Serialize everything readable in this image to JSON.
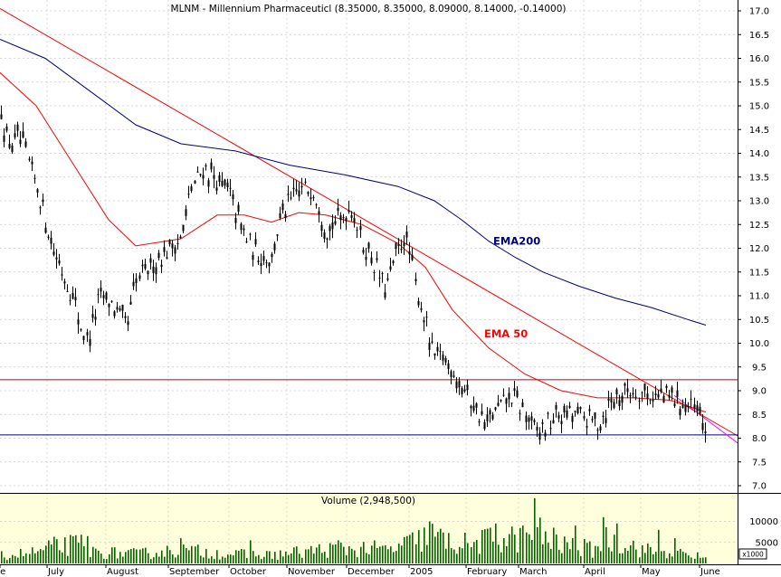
{
  "chart_data": [
    {
      "type": "candlestick",
      "title": "MLNM - Millennium Pharmaceuticl (8.35000, 8.35000, 8.09000, 8.14000, -0.14000)",
      "ylim": [
        6.9,
        17.3
      ],
      "y_ticks": [
        "17.0",
        "16.5",
        "16.0",
        "15.5",
        "15.0",
        "14.5",
        "14.0",
        "13.5",
        "13.0",
        "12.5",
        "12.0",
        "11.5",
        "11.0",
        "10.5",
        "10.0",
        "9.5",
        "9.0",
        "8.5",
        "8.0",
        "7.5",
        "7.0"
      ],
      "x_ticks": [
        "ne",
        "July",
        "August",
        "September",
        "October",
        "November",
        "December",
        "2005",
        "February",
        "March",
        "April",
        "May",
        "June"
      ],
      "grid": true,
      "price_anchors": [
        [
          0,
          15.0
        ],
        [
          8,
          14.2
        ],
        [
          22,
          14.3
        ],
        [
          40,
          13.3
        ],
        [
          60,
          11.9
        ],
        [
          80,
          11.0
        ],
        [
          95,
          10.0
        ],
        [
          110,
          11.0
        ],
        [
          125,
          10.8
        ],
        [
          140,
          10.3
        ],
        [
          150,
          11.3
        ],
        [
          165,
          11.6
        ],
        [
          180,
          11.9
        ],
        [
          200,
          12.2
        ],
        [
          210,
          13.2
        ],
        [
          225,
          13.7
        ],
        [
          240,
          13.4
        ],
        [
          255,
          13.1
        ],
        [
          265,
          12.5
        ],
        [
          280,
          11.9
        ],
        [
          300,
          11.8
        ],
        [
          310,
          12.7
        ],
        [
          330,
          13.2
        ],
        [
          345,
          13.3
        ],
        [
          360,
          12.4
        ],
        [
          375,
          12.6
        ],
        [
          388,
          12.9
        ],
        [
          400,
          12.1
        ],
        [
          415,
          11.6
        ],
        [
          425,
          11.1
        ],
        [
          435,
          11.7
        ],
        [
          448,
          12.3
        ],
        [
          460,
          11.1
        ],
        [
          470,
          10.4
        ],
        [
          478,
          9.7
        ],
        [
          490,
          9.7
        ],
        [
          505,
          9.3
        ],
        [
          520,
          8.8
        ],
        [
          535,
          8.3
        ],
        [
          550,
          8.6
        ],
        [
          565,
          8.9
        ],
        [
          580,
          8.5
        ],
        [
          592,
          8.1
        ],
        [
          605,
          8.3
        ],
        [
          620,
          8.5
        ],
        [
          640,
          8.5
        ],
        [
          660,
          8.3
        ],
        [
          675,
          8.8
        ],
        [
          692,
          9.0
        ],
        [
          705,
          9.0
        ],
        [
          720,
          8.9
        ],
        [
          735,
          8.9
        ],
        [
          750,
          8.8
        ],
        [
          765,
          8.6
        ],
        [
          780,
          8.2
        ]
      ],
      "series": [
        {
          "name": "EMA200",
          "color": "#000080",
          "x": [
            0,
            50,
            100,
            150,
            200,
            260,
            320,
            380,
            440,
            480,
            510,
            540,
            570,
            600,
            640,
            680,
            720,
            760,
            780
          ],
          "y": [
            16.4,
            16.0,
            15.3,
            14.6,
            14.2,
            14.05,
            13.75,
            13.55,
            13.3,
            13.0,
            12.6,
            12.15,
            11.8,
            11.5,
            11.2,
            10.95,
            10.75,
            10.5,
            10.38
          ]
        },
        {
          "name": "EMA 50",
          "color": "#ff0000",
          "x": [
            0,
            40,
            80,
            120,
            150,
            200,
            240,
            270,
            300,
            330,
            360,
            400,
            440,
            470,
            500,
            540,
            580,
            620,
            660,
            700,
            740,
            780
          ],
          "y": [
            15.7,
            15.0,
            13.8,
            12.6,
            12.05,
            12.2,
            12.7,
            12.7,
            12.55,
            12.75,
            12.7,
            12.5,
            12.1,
            11.6,
            10.7,
            9.9,
            9.35,
            9.0,
            8.85,
            8.85,
            8.8,
            8.55
          ]
        }
      ],
      "lines": [
        {
          "from": [
            0,
            17.05
          ],
          "to": [
            815,
            8.05
          ],
          "color": "#ff0000"
        },
        {
          "from": [
            0,
            9.23
          ],
          "to": [
            815,
            9.23
          ],
          "color": "#c00000"
        },
        {
          "from": [
            0,
            8.07
          ],
          "to": [
            815,
            8.07
          ],
          "color": "#000080"
        },
        {
          "from": [
            745,
            8.9
          ],
          "to": [
            815,
            7.9
          ],
          "color": "#ff00ff"
        }
      ],
      "annotations": [
        {
          "text": "EMA200",
          "x": 545,
          "y": 12.15,
          "color": "#000080"
        },
        {
          "text": "EMA 50",
          "x": 535,
          "y": 10.2,
          "color": "#ff0000"
        }
      ]
    },
    {
      "type": "bar",
      "title": "Volume (2,948,500)",
      "ylim": [
        0,
        17000
      ],
      "y_ticks": [
        "10000",
        "5000"
      ],
      "unit_label": "x1000",
      "color": "#006400",
      "volume_anchors": [
        [
          0,
          2000
        ],
        [
          40,
          3000
        ],
        [
          60,
          4500
        ],
        [
          90,
          5000
        ],
        [
          100,
          3000
        ],
        [
          150,
          2500
        ],
        [
          200,
          3500
        ],
        [
          250,
          2500
        ],
        [
          300,
          2200
        ],
        [
          350,
          3500
        ],
        [
          400,
          4000
        ],
        [
          430,
          3500
        ],
        [
          460,
          6000
        ],
        [
          475,
          7500
        ],
        [
          495,
          5500
        ],
        [
          520,
          5000
        ],
        [
          545,
          6500
        ],
        [
          575,
          6500
        ],
        [
          590,
          9000
        ],
        [
          610,
          5000
        ],
        [
          635,
          4500
        ],
        [
          655,
          3500
        ],
        [
          670,
          6500
        ],
        [
          690,
          5500
        ],
        [
          710,
          3500
        ],
        [
          740,
          3000
        ],
        [
          780,
          1500
        ]
      ],
      "spikes": [
        [
          57,
          4500
        ],
        [
          96,
          6500
        ],
        [
          198,
          6000
        ],
        [
          276,
          5500
        ],
        [
          374,
          5500
        ],
        [
          473,
          10000
        ],
        [
          540,
          8500
        ],
        [
          546,
          9500
        ],
        [
          576,
          9000
        ],
        [
          589,
          15500
        ],
        [
          612,
          8500
        ],
        [
          634,
          9000
        ],
        [
          665,
          11000
        ],
        [
          680,
          9500
        ],
        [
          727,
          8000
        ],
        [
          744,
          6000
        ]
      ]
    }
  ]
}
